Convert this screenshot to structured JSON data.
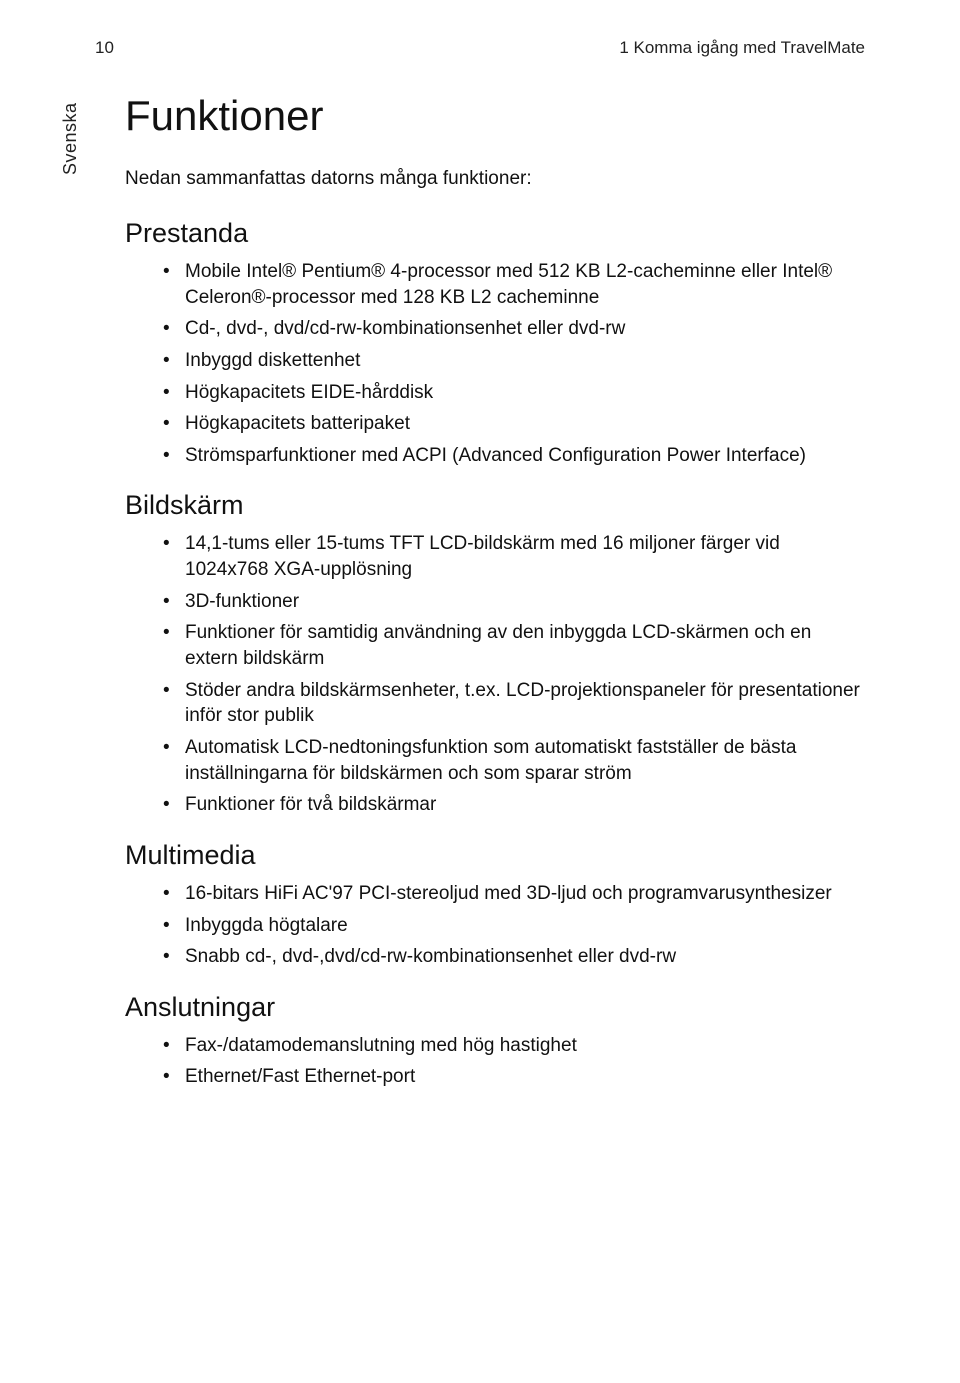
{
  "header": {
    "page_number": "10",
    "chapter": "1 Komma igång med TravelMate"
  },
  "sidebar_tab": "Svenska",
  "title": "Funktioner",
  "intro": "Nedan sammanfattas datorns många funktioner:",
  "sections": [
    {
      "heading": "Prestanda",
      "items": [
        "Mobile Intel® Pentium® 4-processor med 512 KB L2-cacheminne eller Intel® Celeron®-processor med 128 KB L2 cacheminne",
        "Cd-, dvd-, dvd/cd-rw-kombinationsenhet eller dvd-rw",
        "Inbyggd diskettenhet",
        "Högkapacitets EIDE-hårddisk",
        "Högkapacitets batteripaket",
        "Strömsparfunktioner med ACPI (Advanced Configuration Power Interface)"
      ]
    },
    {
      "heading": "Bildskärm",
      "items": [
        "14,1-tums eller 15-tums TFT LCD-bildskärm med 16 miljoner färger vid 1024x768 XGA-upplösning",
        "3D-funktioner",
        "Funktioner för samtidig användning av den inbyggda LCD-skärmen och en extern bildskärm",
        "Stöder andra bildskärmsenheter, t.ex. LCD-projektionspaneler för presentationer inför stor publik",
        "Automatisk LCD-nedtoningsfunktion som automatiskt fastställer de bästa inställningarna för bildskärmen och som sparar ström",
        "Funktioner för två bildskärmar"
      ]
    },
    {
      "heading": "Multimedia",
      "items": [
        "16-bitars HiFi AC'97 PCI-stereoljud med 3D-ljud och programvarusynthesizer",
        "Inbyggda högtalare",
        "Snabb cd-, dvd-,dvd/cd-rw-kombinationsenhet eller dvd-rw"
      ]
    },
    {
      "heading": "Anslutningar",
      "items": [
        "Fax-/datamodemanslutning med hög hastighet",
        "Ethernet/Fast Ethernet-port"
      ]
    }
  ]
}
